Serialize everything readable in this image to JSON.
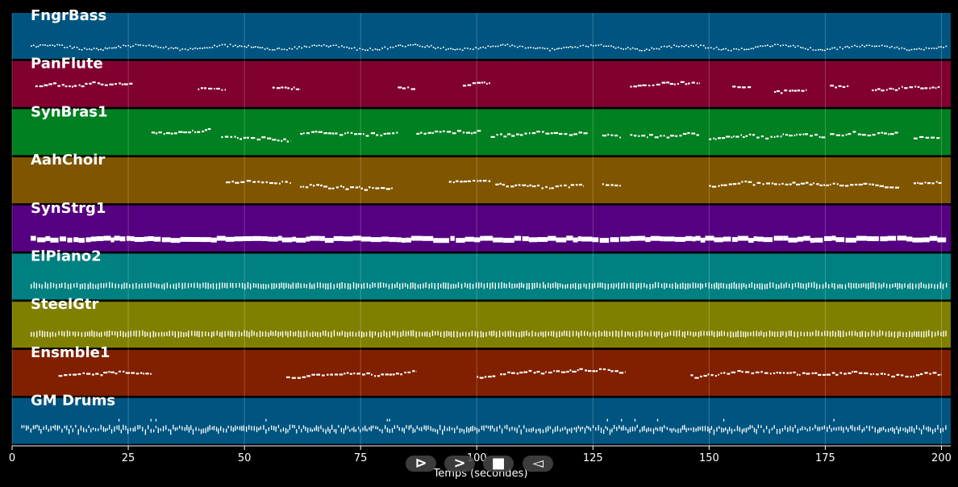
{
  "chart_data": {
    "type": "piano-roll",
    "xlabel": "Temps (secondes)",
    "xlim": [
      0,
      202
    ],
    "xticks": [
      0,
      25,
      50,
      75,
      100,
      125,
      150,
      175,
      200
    ],
    "grid": true,
    "tracks": [
      {
        "name": "FngrBass",
        "color": "#005580",
        "segments": [
          [
            4,
            201
          ]
        ],
        "style": "dense-thin",
        "seed": 11
      },
      {
        "name": "PanFlute",
        "color": "#800030",
        "segments": [
          [
            5,
            26
          ],
          [
            40,
            46
          ],
          [
            56,
            62
          ],
          [
            83,
            87
          ],
          [
            97,
            103
          ],
          [
            133,
            148
          ],
          [
            155,
            159
          ],
          [
            164,
            171
          ],
          [
            176,
            180
          ],
          [
            185,
            200
          ]
        ],
        "style": "phrase",
        "seed": 23
      },
      {
        "name": "SynBras1",
        "color": "#008020",
        "segments": [
          [
            30,
            43
          ],
          [
            45,
            60
          ],
          [
            62,
            83
          ],
          [
            87,
            101
          ],
          [
            103,
            124
          ],
          [
            127,
            131
          ],
          [
            133,
            148
          ],
          [
            150,
            175
          ],
          [
            176,
            191
          ],
          [
            194,
            200
          ]
        ],
        "style": "phrase",
        "seed": 37
      },
      {
        "name": "AahChoir",
        "color": "#7F5500",
        "segments": [
          [
            46,
            60
          ],
          [
            62,
            82
          ],
          [
            94,
            103
          ],
          [
            104,
            123
          ],
          [
            127,
            131
          ],
          [
            150,
            191
          ],
          [
            194,
            200
          ]
        ],
        "style": "phrase",
        "seed": 41
      },
      {
        "name": "SynStrg1",
        "color": "#550080",
        "segments": [
          [
            4,
            201
          ]
        ],
        "style": "thick",
        "seed": 53
      },
      {
        "name": "ElPiano2",
        "color": "#008080",
        "segments": [
          [
            4,
            201
          ]
        ],
        "style": "ticks",
        "seed": 61
      },
      {
        "name": "SteelGtr",
        "color": "#808000",
        "segments": [
          [
            4,
            201
          ]
        ],
        "style": "ticks",
        "seed": 71
      },
      {
        "name": "Ensmble1",
        "color": "#802000",
        "segments": [
          [
            10,
            30
          ],
          [
            59,
            87
          ],
          [
            100,
            104
          ],
          [
            105,
            132
          ],
          [
            146,
            200
          ]
        ],
        "style": "phrase",
        "seed": 83
      },
      {
        "name": "GM Drums",
        "color": "#005580",
        "segments": [
          [
            2,
            201
          ]
        ],
        "style": "drums",
        "seed": 97
      }
    ]
  },
  "controls": [
    {
      "name": "play-button",
      "glyph": "⊳"
    },
    {
      "name": "forward-button",
      "glyph": ">"
    },
    {
      "name": "stop-button",
      "glyph": "■"
    },
    {
      "name": "rewind-button",
      "glyph": "◅"
    }
  ]
}
